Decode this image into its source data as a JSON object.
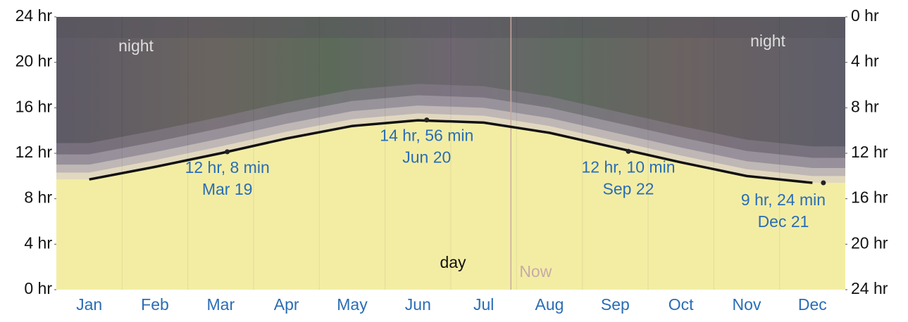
{
  "chart_data": {
    "type": "line",
    "categories": [
      "Jan",
      "Feb",
      "Mar",
      "Apr",
      "May",
      "Jun",
      "Jul",
      "Aug",
      "Sep",
      "Oct",
      "Nov",
      "Dec"
    ],
    "values": [
      9.7,
      10.8,
      12.0,
      13.3,
      14.4,
      14.9,
      14.7,
      13.8,
      12.5,
      11.2,
      10.0,
      9.4
    ],
    "color": "#111111",
    "ylim": [
      0,
      24
    ],
    "yticks": [
      {
        "value": 0,
        "label": "0 hr"
      },
      {
        "value": 4,
        "label": "4 hr"
      },
      {
        "value": 8,
        "label": "8 hr"
      },
      {
        "value": 12,
        "label": "12 hr"
      },
      {
        "value": 16,
        "label": "16 hr"
      },
      {
        "value": 20,
        "label": "20 hr"
      },
      {
        "value": 24,
        "label": "24 hr"
      }
    ],
    "y2lim": [
      24,
      0
    ],
    "y2ticks": [
      {
        "value": 0,
        "label": "0 hr"
      },
      {
        "value": 4,
        "label": "4 hr"
      },
      {
        "value": 8,
        "label": "8 hr"
      },
      {
        "value": 12,
        "label": "12 hr"
      },
      {
        "value": 16,
        "label": "16 hr"
      },
      {
        "value": 20,
        "label": "20 hr"
      },
      {
        "value": 24,
        "label": "24 hr"
      }
    ],
    "annotations": [
      {
        "value": 12.13,
        "label": "12 hr, 8 min",
        "date": "Mar 19"
      },
      {
        "value": 14.93,
        "label": "14 hr, 56 min",
        "date": "Jun 20"
      },
      {
        "value": 12.17,
        "label": "12 hr, 10 min",
        "date": "Sep 22"
      },
      {
        "value": 9.4,
        "label": "9 hr, 24 min",
        "date": "Dec 21"
      }
    ],
    "night_label": "night",
    "day_label": "day",
    "now_label": "Now",
    "now_category": "Aug"
  }
}
